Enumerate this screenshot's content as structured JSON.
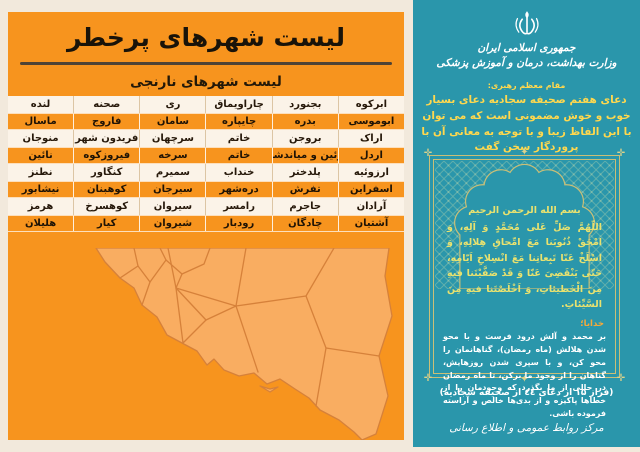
{
  "left_panel": {
    "title": "لیست شهرهای پرخطر",
    "subtitle": "لیست شهرهای نارنجی",
    "table": {
      "rows": [
        [
          "ابرکوه",
          "بجنورد",
          "چاراویماق",
          "ری",
          "صحنه",
          "لنده"
        ],
        [
          "ابوموسی",
          "بدره",
          "چایپاره",
          "سامان",
          "فاروج",
          "ماسال"
        ],
        [
          "اراک",
          "بروجن",
          "خاتم",
          "سرچهان",
          "فریدون شهر",
          "منوجان"
        ],
        [
          "اردل",
          "بوئین و میاندشت",
          "خاتم",
          "سرخه",
          "فیروزکوه",
          "نائین"
        ],
        [
          "ارزوئیه",
          "پلدختر",
          "خنداب",
          "سمیرم",
          "کنگاور",
          "نطنز"
        ],
        [
          "اسفراین",
          "تفرش",
          "دره‌شهر",
          "سیرجان",
          "کوهبنان",
          "نیشابور"
        ],
        [
          "آرادان",
          "جاجرم",
          "رامسر",
          "سیروان",
          "کوهسرخ",
          "هرمز"
        ],
        [
          "آشتیان",
          "چادگان",
          "رودبار",
          "شیروان",
          "کیار",
          "هلیلان"
        ]
      ]
    },
    "map": "iran-provinces-map"
  },
  "right_panel": {
    "gov_line1": "جمهوری اسلامی ایران",
    "gov_line2": "وزارت بهداشت، درمان و آموزش پزشکی",
    "quote_attribution": "مقام معظم رهبری:",
    "quote": "دعای هفتم صحیفه سجادیه دعای بسیار خوب و خوش مضمونی است که می توان با این الفاظ زیبا و با توجه به معانی آن با پروردگار سخن گفت",
    "bismillah": "بسم الله الرحمن الرحیم",
    "arabic_prayer": "اللّهُمَّ صَلِّ عَلی مُحَمَّدٍ وَ آلِهِ، وَ امْحَقْ ذُنُوبَنا مَعَ امِّحاقِ هِلالِهِ، وَ اسْلَخْ عَنّا تَبِعاتِنا مَعَ انْسِلاخِ اَیّامِهِ، حَتّی یَنْقَضِیَ عَنّا وَ قَدْ صَفَّیْتَنا فیهِ مِنَ الْخَطیئاتِ، وَ اَخْلَصْتَنا فیهِ مِنَ السَّیِّئاتِ.",
    "translation_label": "خدایا؛",
    "translation": "بر محمد و آلش درود فرست و با محو شدن هلالش (ماه رمضان)، گناهانمان را محو کن، و با سپری شدن روزهایش، گناهان را از وجود ما برکن، تا ماه رمضان در حالی از ما بگذرد که وجودمان را از خطاها پاکیزه و از بدی‌ها خالص و آراسته فرموده باشی.",
    "citation": "(فراز ۱۵ از دعای ٤٤ از صحیفه سجادیه)",
    "footer": "مرکز روابط عمومی و اطلاع رسانی"
  },
  "icons": {
    "emblem": "iran-coat-of-arms",
    "corner_ornament": "✛",
    "mid_ornament": "✦"
  },
  "colors": {
    "page_bg": "#f2e9dc",
    "panel_orange": "#f7941e",
    "row_light": "#fbf3e8",
    "map_fill": "#f9ad61",
    "map_border": "#d6813a",
    "panel_teal": "#2a96ab",
    "accent_yellow": "#ffd84e",
    "prayer_yellow": "#e9e26f",
    "frame_gold": "#cabf77",
    "title_divider": "#4e4336"
  }
}
